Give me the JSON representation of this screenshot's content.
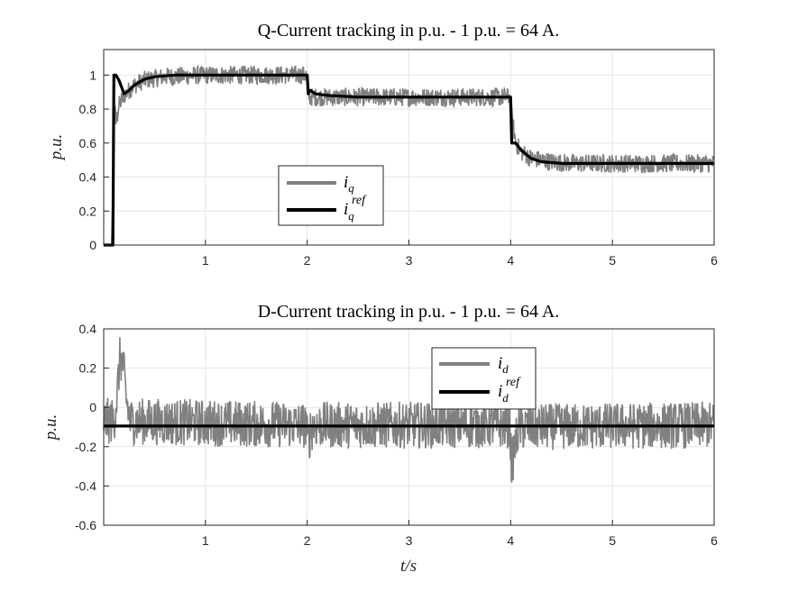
{
  "chart_data": [
    {
      "type": "line",
      "title": "Q-Current tracking in p.u. - 1 p.u. = 64 A.",
      "xlabel": "",
      "ylabel": "p.u.",
      "xlim": [
        0,
        6
      ],
      "ylim": [
        0,
        1.15
      ],
      "xticks": [
        "1",
        "2",
        "3",
        "4",
        "5",
        "6"
      ],
      "yticks": [
        "0",
        "0.2",
        "0.4",
        "0.6",
        "0.8",
        "1"
      ],
      "grid": true,
      "legend_position": "center",
      "series": [
        {
          "name": "i_q",
          "color": "#808080",
          "noise_band": 0.055,
          "points": [
            [
              0.0,
              0.0
            ],
            [
              0.08,
              0.0
            ],
            [
              0.1,
              0.85
            ],
            [
              0.12,
              0.72
            ],
            [
              0.15,
              0.82
            ],
            [
              0.2,
              0.88
            ],
            [
              0.3,
              0.94
            ],
            [
              0.4,
              0.97
            ],
            [
              0.6,
              0.99
            ],
            [
              1.0,
              1.0
            ],
            [
              1.99,
              1.0
            ],
            [
              2.0,
              0.95
            ],
            [
              2.02,
              0.87
            ],
            [
              2.1,
              0.87
            ],
            [
              2.3,
              0.87
            ],
            [
              2.6,
              0.87
            ],
            [
              3.99,
              0.87
            ],
            [
              4.0,
              0.8
            ],
            [
              4.05,
              0.6
            ],
            [
              4.1,
              0.55
            ],
            [
              4.2,
              0.51
            ],
            [
              4.4,
              0.49
            ],
            [
              4.6,
              0.48
            ],
            [
              6.0,
              0.48
            ]
          ]
        },
        {
          "name": "i_q^ref",
          "color": "#000000",
          "noise_band": 0,
          "points": [
            [
              0.0,
              0.0
            ],
            [
              0.09,
              0.0
            ],
            [
              0.1,
              1.0
            ],
            [
              0.12,
              1.0
            ],
            [
              0.15,
              0.97
            ],
            [
              0.2,
              0.89
            ],
            [
              0.25,
              0.91
            ],
            [
              0.3,
              0.94
            ],
            [
              0.4,
              0.975
            ],
            [
              0.5,
              0.99
            ],
            [
              0.7,
              1.0
            ],
            [
              2.0,
              1.0
            ],
            [
              2.01,
              0.89
            ],
            [
              2.03,
              0.91
            ],
            [
              2.08,
              0.89
            ],
            [
              2.2,
              0.88
            ],
            [
              2.5,
              0.87
            ],
            [
              4.0,
              0.87
            ],
            [
              4.01,
              0.6
            ],
            [
              4.05,
              0.6
            ],
            [
              4.1,
              0.56
            ],
            [
              4.2,
              0.51
            ],
            [
              4.3,
              0.49
            ],
            [
              4.5,
              0.48
            ],
            [
              6.0,
              0.48
            ]
          ]
        }
      ]
    },
    {
      "type": "line",
      "title": "D-Current tracking in p.u. - 1 p.u. = 64 A.",
      "xlabel": "t/s",
      "ylabel": "p.u.",
      "xlim": [
        0,
        6
      ],
      "ylim": [
        -0.6,
        0.4
      ],
      "xticks": [
        "1",
        "2",
        "3",
        "4",
        "5",
        "6"
      ],
      "yticks": [
        "-0.6",
        "-0.4",
        "-0.2",
        "0",
        "0.2",
        "0.4"
      ],
      "grid": true,
      "legend_position": "top-center",
      "series": [
        {
          "name": "i_d",
          "color": "#808080",
          "noise_band": 0.12,
          "points": [
            [
              0.0,
              -0.07
            ],
            [
              0.1,
              -0.07
            ],
            [
              0.13,
              0.05
            ],
            [
              0.16,
              0.25
            ],
            [
              0.19,
              0.22
            ],
            [
              0.22,
              0.05
            ],
            [
              0.26,
              -0.07
            ],
            [
              1.99,
              -0.09
            ],
            [
              2.01,
              -0.2
            ],
            [
              2.03,
              -0.12
            ],
            [
              2.06,
              -0.09
            ],
            [
              3.99,
              -0.09
            ],
            [
              4.01,
              -0.3
            ],
            [
              4.04,
              -0.2
            ],
            [
              4.08,
              -0.1
            ],
            [
              6.0,
              -0.09
            ]
          ]
        },
        {
          "name": "i_d^ref",
          "color": "#000000",
          "noise_band": 0,
          "points": [
            [
              0.0,
              -0.095
            ],
            [
              6.0,
              -0.095
            ]
          ]
        }
      ]
    }
  ],
  "legend": {
    "top": {
      "iq_main": "i",
      "iq_sub": "q",
      "iqref_main": "i",
      "iqref_sub": "q",
      "iqref_sup": "ref"
    },
    "bottom": {
      "id_main": "i",
      "id_sub": "d",
      "idref_main": "i",
      "idref_sub": "d",
      "idref_sup": "ref"
    }
  },
  "colors": {
    "measured": "#808080",
    "reference": "#000000",
    "grid": "#e6e6e6",
    "axis": "#262626"
  }
}
